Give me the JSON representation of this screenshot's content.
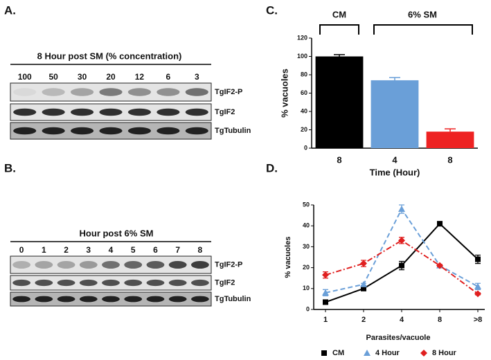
{
  "panels": {
    "a": "A.",
    "b": "B.",
    "c": "C.",
    "d": "D."
  },
  "blot_a": {
    "title": "8 Hour post SM (% concentration)",
    "lanes": [
      "100",
      "50",
      "30",
      "20",
      "12",
      "6",
      "3"
    ],
    "rows": [
      "TgIF2-P",
      "TgIF2",
      "TgTubulin"
    ]
  },
  "blot_b": {
    "title": "Hour post 6% SM",
    "lanes": [
      "0",
      "1",
      "2",
      "3",
      "4",
      "5",
      "6",
      "7",
      "8"
    ],
    "rows": [
      "TgIF2-P",
      "TgIF2",
      "TgTubulin"
    ]
  },
  "chart_data": [
    {
      "type": "bar",
      "categories": [
        "8",
        "4",
        "8"
      ],
      "values": [
        100,
        74,
        18
      ],
      "errors": [
        2,
        3,
        3
      ],
      "colors": [
        "#000000",
        "#6a9fd8",
        "#ee2222"
      ],
      "ylim": [
        0,
        120
      ],
      "yticks": [
        0,
        20,
        40,
        60,
        80,
        100,
        120
      ],
      "ylabel": "% vacuoles",
      "xlabel": "Time (Hour)",
      "annotations": [
        "CM",
        "6% SM"
      ]
    },
    {
      "type": "line",
      "categories": [
        "1",
        "2",
        "4",
        "8",
        ">8"
      ],
      "ylim": [
        0,
        50
      ],
      "yticks": [
        0,
        10,
        20,
        30,
        40,
        50
      ],
      "ylabel": "% vacuoles",
      "xlabel": "Parasites/vacuole",
      "legend": "bottom",
      "series": [
        {
          "name": "CM",
          "color": "#000000",
          "marker": "square",
          "dash": "solid",
          "values": [
            3.5,
            10,
            21,
            41,
            24
          ],
          "errors": [
            0.5,
            0.5,
            2,
            0.5,
            2
          ]
        },
        {
          "name": "4 Hour",
          "color": "#6a9fd8",
          "marker": "triangle",
          "dash": "dashed",
          "values": [
            8,
            12,
            48,
            21,
            11
          ],
          "errors": [
            1.5,
            0.5,
            2,
            0.5,
            1.5
          ]
        },
        {
          "name": "8 Hour",
          "color": "#e02020",
          "marker": "diamond",
          "dash": "dashdot",
          "values": [
            16.5,
            22,
            33,
            21,
            7.5
          ],
          "errors": [
            1.5,
            1.5,
            1.5,
            0.5,
            0.5
          ]
        }
      ]
    }
  ]
}
